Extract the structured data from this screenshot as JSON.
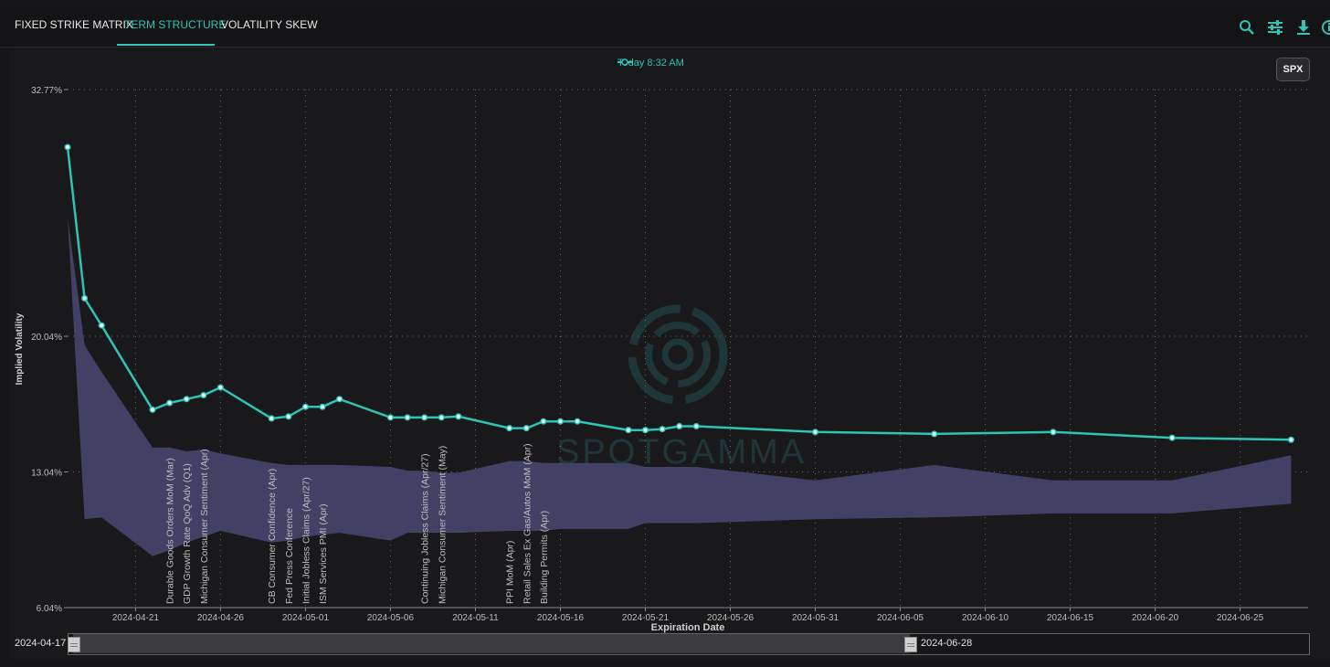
{
  "tabs": [
    {
      "label": "FIXED STRIKE MATRIX"
    },
    {
      "label": "TERM STRUCTURE"
    },
    {
      "label": "VOLATILITY SKEW"
    }
  ],
  "toolbar": {
    "icons": [
      "search-icon",
      "sliders-icon",
      "download-icon",
      "info-icon"
    ]
  },
  "symbol_button": "SPX",
  "range": {
    "start_label": "2024-04-17",
    "end_label": "2024-06-28"
  },
  "watermark": "SPOTGAMMA",
  "colors": {
    "line": "#2ec4b6",
    "band": "#46426a",
    "accent": "#2ec4b6"
  },
  "chart_data": {
    "type": "line",
    "title": "",
    "xlabel": "Expiration Date",
    "ylabel": "Implied Volatility",
    "ylim": [
      6.04,
      32.77
    ],
    "y_ticks": [
      "32.77%",
      "20.04%",
      "13.04%",
      "6.04%"
    ],
    "x_ticks": [
      "2024-04-21",
      "2024-04-26",
      "2024-05-01",
      "2024-05-06",
      "2024-05-11",
      "2024-05-16",
      "2024-05-21",
      "2024-05-26",
      "2024-05-31",
      "2024-06-05",
      "2024-06-10",
      "2024-06-15",
      "2024-06-20",
      "2024-06-25"
    ],
    "xlim": [
      "2024-04-17",
      "2024-06-29"
    ],
    "grid": true,
    "legend": {
      "position": "top-center",
      "entries": [
        "Today 8:32 AM"
      ]
    },
    "series": [
      {
        "name": "Today 8:32 AM",
        "points": [
          [
            "2024-04-17",
            29.8
          ],
          [
            "2024-04-18",
            22.0
          ],
          [
            "2024-04-19",
            20.6
          ],
          [
            "2024-04-22",
            16.25
          ],
          [
            "2024-04-23",
            16.6
          ],
          [
            "2024-04-24",
            16.8
          ],
          [
            "2024-04-25",
            17.0
          ],
          [
            "2024-04-26",
            17.4
          ],
          [
            "2024-04-29",
            15.8
          ],
          [
            "2024-04-30",
            15.9
          ],
          [
            "2024-05-01",
            16.4
          ],
          [
            "2024-05-02",
            16.4
          ],
          [
            "2024-05-03",
            16.8
          ],
          [
            "2024-05-06",
            15.85
          ],
          [
            "2024-05-07",
            15.85
          ],
          [
            "2024-05-08",
            15.85
          ],
          [
            "2024-05-09",
            15.85
          ],
          [
            "2024-05-10",
            15.9
          ],
          [
            "2024-05-13",
            15.3
          ],
          [
            "2024-05-14",
            15.3
          ],
          [
            "2024-05-15",
            15.65
          ],
          [
            "2024-05-16",
            15.65
          ],
          [
            "2024-05-17",
            15.65
          ],
          [
            "2024-05-20",
            15.2
          ],
          [
            "2024-05-21",
            15.2
          ],
          [
            "2024-05-22",
            15.25
          ],
          [
            "2024-05-23",
            15.4
          ],
          [
            "2024-05-24",
            15.4
          ],
          [
            "2024-05-31",
            15.1
          ],
          [
            "2024-06-07",
            15.0
          ],
          [
            "2024-06-14",
            15.1
          ],
          [
            "2024-06-21",
            14.8
          ],
          [
            "2024-06-28",
            14.7
          ]
        ]
      }
    ],
    "band": {
      "name": "",
      "points": [
        [
          "2024-04-17",
          26.2,
          26.2
        ],
        [
          "2024-04-18",
          19.6,
          10.6
        ],
        [
          "2024-04-19",
          18.2,
          10.7
        ],
        [
          "2024-04-22",
          14.3,
          8.7
        ],
        [
          "2024-04-23",
          14.3,
          9.0
        ],
        [
          "2024-04-24",
          14.1,
          9.4
        ],
        [
          "2024-04-25",
          14.2,
          9.7
        ],
        [
          "2024-04-26",
          14.0,
          10.0
        ],
        [
          "2024-04-29",
          13.5,
          9.4
        ],
        [
          "2024-04-30",
          13.4,
          9.5
        ],
        [
          "2024-05-01",
          13.4,
          9.7
        ],
        [
          "2024-05-02",
          13.4,
          9.8
        ],
        [
          "2024-05-03",
          13.4,
          9.9
        ],
        [
          "2024-05-06",
          13.3,
          9.5
        ],
        [
          "2024-05-07",
          13.1,
          9.9
        ],
        [
          "2024-05-08",
          13.1,
          9.9
        ],
        [
          "2024-05-09",
          13.0,
          9.9
        ],
        [
          "2024-05-10",
          13.0,
          9.9
        ],
        [
          "2024-05-13",
          13.6,
          10.0
        ],
        [
          "2024-05-14",
          13.6,
          10.0
        ],
        [
          "2024-05-15",
          13.5,
          10.0
        ],
        [
          "2024-05-16",
          13.5,
          10.1
        ],
        [
          "2024-05-17",
          13.5,
          10.1
        ],
        [
          "2024-05-20",
          13.5,
          10.1
        ],
        [
          "2024-05-21",
          13.3,
          10.4
        ],
        [
          "2024-05-24",
          13.3,
          10.4
        ],
        [
          "2024-05-31",
          12.6,
          10.6
        ],
        [
          "2024-06-07",
          13.4,
          10.7
        ],
        [
          "2024-06-14",
          12.6,
          10.9
        ],
        [
          "2024-06-21",
          12.6,
          10.9
        ],
        [
          "2024-06-28",
          13.9,
          11.4
        ]
      ]
    },
    "annotations": [
      {
        "date": "2024-04-23",
        "text": "Durable Goods Orders MoM (Mar)"
      },
      {
        "date": "2024-04-24",
        "text": "GDP Growth Rate QoQ Adv (Q1)"
      },
      {
        "date": "2024-04-25",
        "text": "Michigan Consumer Sentiment (Apr)"
      },
      {
        "date": "2024-04-29",
        "text": "CB Consumer Confidence (Apr)"
      },
      {
        "date": "2024-04-30",
        "text": "Fed Press Conference"
      },
      {
        "date": "2024-05-01",
        "text": "Initial Jobless Claims (Apr/27)"
      },
      {
        "date": "2024-05-02",
        "text": "ISM Services PMI (Apr)"
      },
      {
        "date": "2024-05-08",
        "text": "Continuing Jobless Claims (Apr/27)"
      },
      {
        "date": "2024-05-09",
        "text": "Michigan Consumer Sentiment (May)"
      },
      {
        "date": "2024-05-13",
        "text": "PPI MoM (Apr)"
      },
      {
        "date": "2024-05-14",
        "text": "Retail Sales Ex Gas/Autos MoM (Apr)"
      },
      {
        "date": "2024-05-15",
        "text": "Building Permits (Apr)"
      }
    ]
  }
}
